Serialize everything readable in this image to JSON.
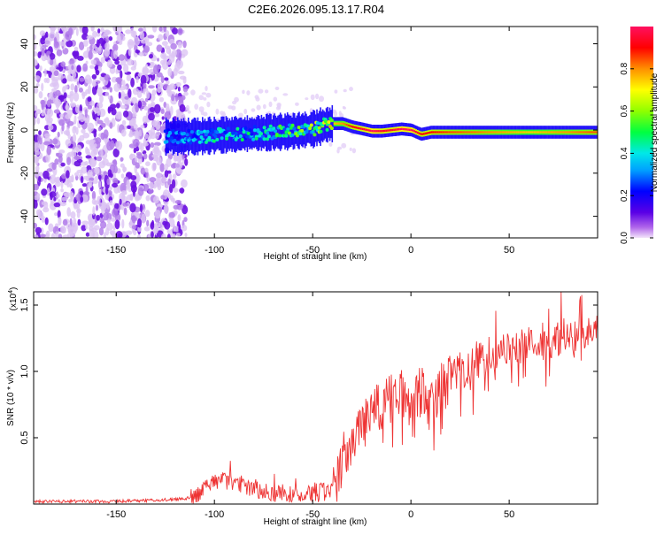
{
  "title": "C2E6.2026.095.13.17.R04",
  "chart_data": [
    {
      "type": "heatmap",
      "description_hint": "spectrogram",
      "xlabel": "Height of straight line (km)",
      "ylabel": "Frequency (Hz)",
      "xlim": [
        -192,
        95
      ],
      "ylim": [
        -50,
        48
      ],
      "xticks": [
        -150,
        -100,
        -50,
        0,
        50
      ],
      "yticks": [
        -40,
        -20,
        0,
        20,
        40
      ],
      "colorbar": {
        "label": "Normalized spectral amplitude",
        "range": [
          0,
          1
        ],
        "ticks": [
          0.0,
          0.2,
          0.4,
          0.6,
          0.8
        ],
        "tick_labels": [
          "0.0",
          "0.2",
          "0.4",
          "0.6",
          "0.8"
        ]
      },
      "noise_region_x": [
        -192,
        -114
      ],
      "signal_ridge": {
        "x": [
          -125,
          -110,
          -100,
          -90,
          -80,
          -70,
          -60,
          -50,
          -45,
          -40,
          -35,
          -30,
          -25,
          -20,
          -15,
          -10,
          -5,
          0,
          5,
          10,
          20,
          40,
          60,
          80,
          95
        ],
        "frequency": [
          -3,
          -3,
          -2.5,
          -2,
          -1.5,
          -1,
          -0.5,
          0.5,
          2,
          3,
          3,
          1.5,
          0.5,
          -0.5,
          -0.5,
          0,
          0.5,
          0,
          -2,
          -1,
          -1,
          -1,
          -1,
          -1,
          -1
        ],
        "amplitude": [
          0.35,
          0.4,
          0.45,
          0.45,
          0.45,
          0.5,
          0.55,
          0.6,
          0.65,
          0.75,
          0.8,
          0.9,
          0.95,
          1.0,
          0.95,
          0.95,
          1.0,
          1.0,
          0.9,
          0.9,
          0.85,
          0.8,
          0.75,
          0.8,
          0.85
        ]
      }
    },
    {
      "type": "line",
      "xlabel": "Height of straight line (km)",
      "ylabel": "SNR (10 * v/v)",
      "y_multiplier_label": "(x10",
      "y_multiplier_exp": "4",
      "y_multiplier_close": ")",
      "xlim": [
        -192,
        95
      ],
      "ylim": [
        0,
        1.6
      ],
      "xticks": [
        -150,
        -100,
        -50,
        0,
        50
      ],
      "yticks": [
        0.5,
        1.0,
        1.5
      ],
      "ytick_labels": [
        "0.5",
        "1.0",
        "1.5"
      ],
      "color": "#ee3333",
      "series": [
        {
          "x": [
            -192,
            -170,
            -150,
            -130,
            -115,
            -108,
            -104,
            -100,
            -95,
            -90,
            -85,
            -80,
            -75,
            -70,
            -65,
            -60,
            -55,
            -50,
            -45,
            -40,
            -37,
            -35,
            -32,
            -30,
            -28,
            -25,
            -22,
            -20,
            -18,
            -15,
            -12,
            -10,
            -8,
            -5,
            -2,
            0,
            3,
            6,
            10,
            12,
            15,
            18,
            20,
            25,
            30,
            35,
            40,
            45,
            50,
            55,
            60,
            65,
            70,
            75,
            80,
            85,
            90,
            95
          ],
          "y": [
            0.02,
            0.02,
            0.02,
            0.03,
            0.04,
            0.07,
            0.12,
            0.16,
            0.18,
            0.17,
            0.15,
            0.12,
            0.1,
            0.08,
            0.09,
            0.08,
            0.07,
            0.08,
            0.09,
            0.12,
            0.2,
            0.35,
            0.45,
            0.5,
            0.55,
            0.6,
            0.65,
            0.68,
            0.7,
            0.75,
            0.8,
            0.78,
            0.8,
            0.85,
            0.78,
            0.8,
            0.82,
            0.85,
            0.7,
            0.8,
            0.88,
            0.92,
            0.95,
            1.0,
            1.05,
            1.1,
            1.12,
            1.15,
            1.18,
            1.2,
            1.2,
            1.22,
            1.22,
            1.25,
            1.27,
            1.25,
            1.3,
            1.28
          ]
        }
      ]
    }
  ]
}
